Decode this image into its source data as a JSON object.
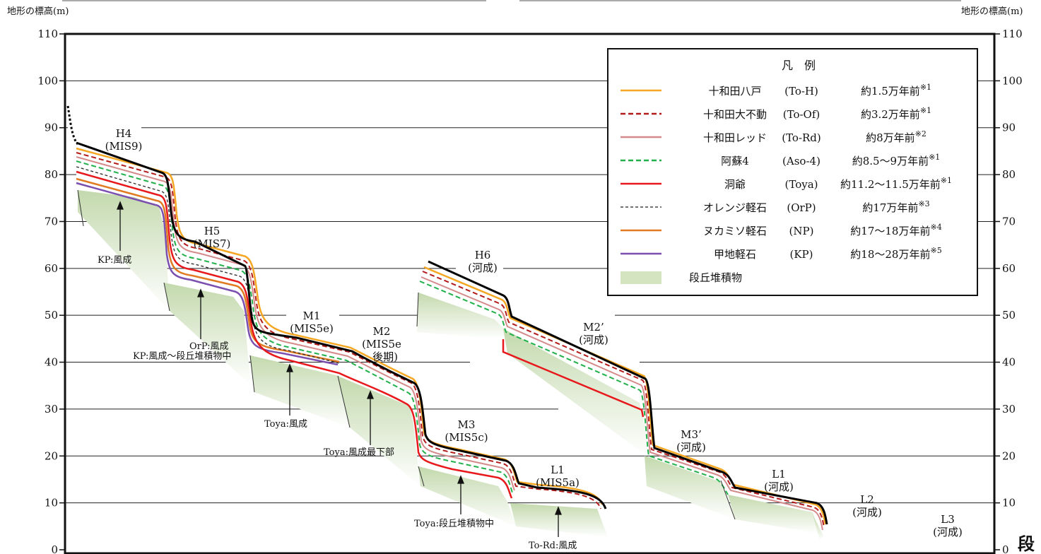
{
  "axis": {
    "left_label": "地形の標高(m)",
    "right_label": "地形の標高(m)",
    "ticks": [
      "0",
      "10",
      "20",
      "30",
      "40",
      "50",
      "60",
      "70",
      "80",
      "90",
      "100",
      "110"
    ],
    "ylim": [
      0,
      110
    ]
  },
  "legend": {
    "title": "凡　例",
    "items": [
      {
        "name": "十和田八戸",
        "code": "(To-H)",
        "age": "約1.5万年前",
        "note": "※1",
        "color": "#f5a623",
        "style": "solid"
      },
      {
        "name": "十和田大不動",
        "code": "(To-Of)",
        "age": "約3.2万年前",
        "note": "※1",
        "color": "#b31b1b",
        "style": "dashed"
      },
      {
        "name": "十和田レッド",
        "code": "(To-Rd)",
        "age": "約8万年前",
        "note": "※2",
        "color": "#d48a8a",
        "style": "solid"
      },
      {
        "name": "阿蘇4",
        "code": "(Aso-4)",
        "age": "約8.5～9万年前",
        "note": "※1",
        "color": "#22b04b",
        "style": "dashed"
      },
      {
        "name": "洞爺",
        "code": "(Toya)",
        "age": "約11.2～11.5万年前",
        "note": "※1",
        "color": "#e8191c",
        "style": "solid"
      },
      {
        "name": "オレンジ軽石",
        "code": "(OrP)",
        "age": "約17万年前",
        "note": "※3",
        "color": "#444444",
        "style": "dotted"
      },
      {
        "name": "ヌカミソ軽石",
        "code": "(NP)",
        "age": "約17～18万年前",
        "note": "※4",
        "color": "#e07b22",
        "style": "solid"
      },
      {
        "name": "甲地軽石",
        "code": "(KP)",
        "age": "約18～28万年前",
        "note": "※5",
        "color": "#7b4fb0",
        "style": "solid"
      },
      {
        "name": "段丘堆積物",
        "code": "",
        "age": "",
        "note": "",
        "color": "#d4e4c0",
        "style": "fill"
      }
    ]
  },
  "terraces": [
    {
      "id": "H4",
      "line1": "H4",
      "line2": "(MIS9)"
    },
    {
      "id": "H5",
      "line1": "H5",
      "line2": "(MIS7)"
    },
    {
      "id": "M1",
      "line1": "M1",
      "line2": "(MIS5e)"
    },
    {
      "id": "M2",
      "line1": "M2",
      "line2": "(MIS5e",
      "line3": "後期)"
    },
    {
      "id": "M3",
      "line1": "M3",
      "line2": "(MIS5c)"
    },
    {
      "id": "L1a",
      "line1": "L1",
      "line2": "(MIS5a)"
    },
    {
      "id": "H6",
      "line1": "H6",
      "line2": "(河成)"
    },
    {
      "id": "M2p",
      "line1": "M2’",
      "line2": "(河成)"
    },
    {
      "id": "M3p",
      "line1": "M3’",
      "line2": "(河成)"
    },
    {
      "id": "L1r",
      "line1": "L1",
      "line2": "(河成)"
    },
    {
      "id": "L2",
      "line1": "L2",
      "line2": "(河成)"
    },
    {
      "id": "L3",
      "line1": "L3",
      "line2": "(河成)"
    }
  ],
  "annotations": {
    "kp_eolian": "KP:風成",
    "orp_eolian": "OrP:風成",
    "kp_mixed": "KP:風成～段丘堆積物中",
    "toya_eolian": "Toya:風成",
    "toya_lowest": "Toya:風成最下部",
    "toya_deposit": "Toya:段丘堆積物中",
    "tord_eolian": "To-Rd:風成"
  },
  "edge_text": "段"
}
